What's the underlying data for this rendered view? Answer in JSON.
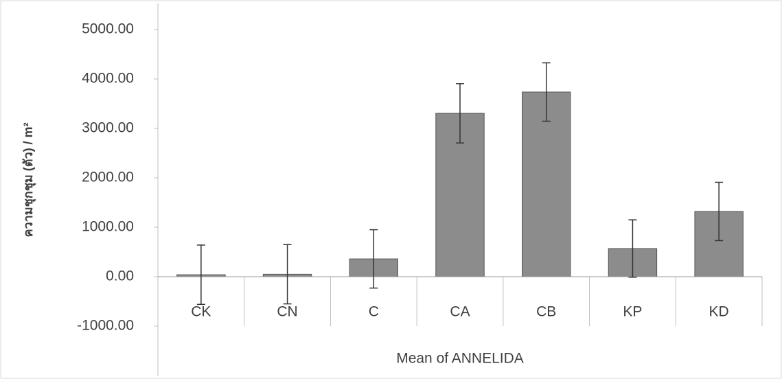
{
  "chart_data": {
    "type": "bar",
    "y_axis_title": "ความชุกชุม (ตัว) / m²",
    "x_axis_title": "Mean of ANNELIDA",
    "categories": [
      "CK",
      "CN",
      "C",
      "CA",
      "CB",
      "KP",
      "KD"
    ],
    "values": [
      40,
      50,
      360,
      3305,
      3736,
      570,
      1320
    ],
    "errors": [
      600,
      600,
      590,
      600,
      590,
      580,
      590
    ],
    "color": "#8c8c8c",
    "ylim": [
      -1000,
      5000
    ],
    "yticks": [
      {
        "value": -1000,
        "label": "-1000.00"
      },
      {
        "value": 0,
        "label": "0.00"
      },
      {
        "value": 1000,
        "label": "1000.00"
      },
      {
        "value": 2000,
        "label": "2000.00"
      },
      {
        "value": 3000,
        "label": "3000.00"
      },
      {
        "value": 4000,
        "label": "4000.00"
      },
      {
        "value": 5000,
        "label": "5000.00"
      }
    ],
    "grid": false
  }
}
